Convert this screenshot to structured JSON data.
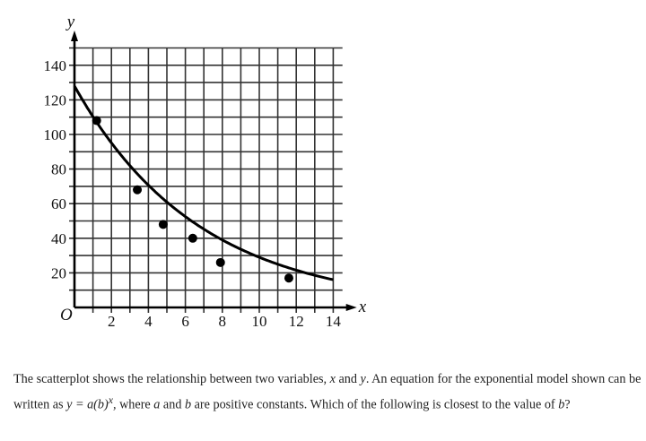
{
  "chart_data": {
    "type": "scatter",
    "title": "",
    "xlabel": "x",
    "ylabel": "y",
    "origin_label": "O",
    "xlim": [
      0,
      14.5
    ],
    "ylim": [
      0,
      150
    ],
    "grid": true,
    "x_grid_step": 1,
    "y_grid_step": 10,
    "x_ticks": [
      2,
      4,
      6,
      8,
      10,
      12,
      14
    ],
    "y_ticks": [
      20,
      40,
      60,
      80,
      100,
      120,
      140
    ],
    "points": [
      {
        "x": 1.2,
        "y": 108
      },
      {
        "x": 3.4,
        "y": 68
      },
      {
        "x": 4.8,
        "y": 48
      },
      {
        "x": 6.4,
        "y": 40
      },
      {
        "x": 7.9,
        "y": 26
      },
      {
        "x": 11.6,
        "y": 17
      }
    ],
    "model_curve": {
      "type": "exponential",
      "form": "y = a(b)^x",
      "a": 128,
      "b": 0.83,
      "x_range": [
        0,
        14
      ]
    }
  },
  "question": {
    "text_1": "The scatterplot shows the relationship between two variables, ",
    "var_x": "x",
    "text_2": " and ",
    "var_y": "y",
    "text_3": ". An equation for the exponential model shown can be written as ",
    "equation": "y = a(b)",
    "equation_exp": "x",
    "text_4": ", where ",
    "const_a": "a",
    "text_5": " and ",
    "const_b": "b",
    "text_6": " are positive constants. Which of the following is closest to the value of ",
    "const_b2": "b",
    "text_7": "?"
  }
}
